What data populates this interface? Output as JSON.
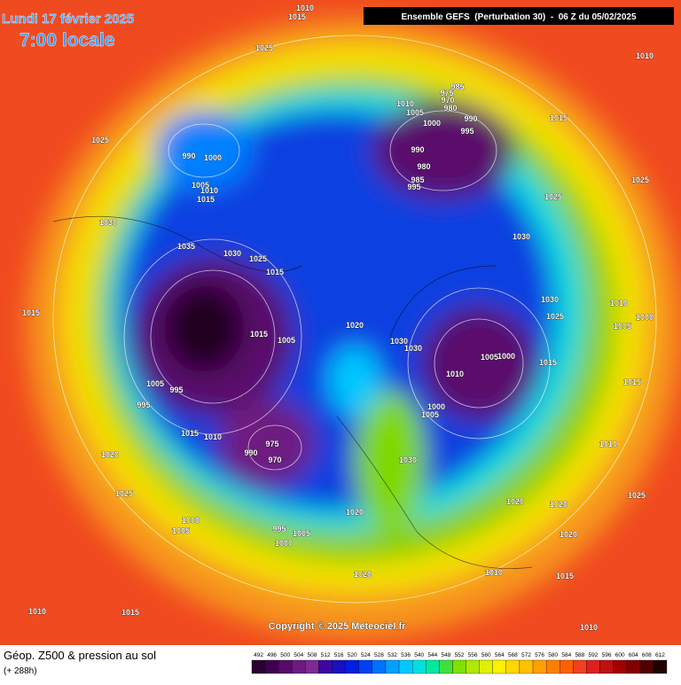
{
  "header": {
    "date": "Lundi 17 février 2025",
    "time": "7:00 locale",
    "run": "Ensemble GEFS  (Perturbation 30)  -  06 Z du 05/02/2025"
  },
  "map": {
    "pressure_labels": [
      1010,
      1015,
      1010,
      1025,
      1025,
      990,
      1000,
      1005,
      1010,
      1015,
      1030,
      1035,
      1030,
      1025,
      1015,
      1015,
      1015,
      1005,
      1020,
      1030,
      1030,
      1005,
      995,
      995,
      1015,
      1010,
      975,
      990,
      970,
      1020,
      1025,
      1000,
      1005,
      995,
      1000,
      1005,
      1020,
      1020,
      1030,
      1010,
      1015,
      1010,
      1015,
      1010,
      1020,
      1020,
      1020,
      1010,
      1015,
      1015,
      1010,
      1005,
      1000,
      1000,
      1005,
      1030,
      1025,
      1010,
      1000,
      1005,
      1030,
      1025,
      1025,
      1015,
      990,
      995,
      985,
      975,
      970,
      980,
      1010,
      1005,
      1000,
      990,
      980,
      985,
      995,
      1025
    ]
  },
  "copyright": "Copyright © 2025 Meteociel.fr",
  "footer": {
    "title": "Géop. Z500 & pression au sol",
    "subtitle": "(+ 288h)"
  },
  "legend": {
    "levels": [
      492,
      496,
      500,
      504,
      508,
      512,
      516,
      520,
      524,
      528,
      532,
      536,
      540,
      544,
      548,
      552,
      556,
      560,
      564,
      568,
      572,
      576,
      580,
      584,
      588,
      592,
      596,
      600,
      604,
      608,
      612
    ],
    "colors": [
      "#2a0030",
      "#400050",
      "#5a0a6a",
      "#6e1a80",
      "#7e2a96",
      "#3a0aa0",
      "#1a10c0",
      "#0020e0",
      "#0040f0",
      "#0070ff",
      "#00a0ff",
      "#00c8ff",
      "#00e0e0",
      "#00e8a0",
      "#40e040",
      "#80e000",
      "#b0e800",
      "#e0f000",
      "#fff000",
      "#ffd800",
      "#ffc000",
      "#ffa000",
      "#ff8000",
      "#ff6000",
      "#f04020",
      "#e02020",
      "#c01010",
      "#a00000",
      "#800000",
      "#500000",
      "#200000"
    ]
  }
}
